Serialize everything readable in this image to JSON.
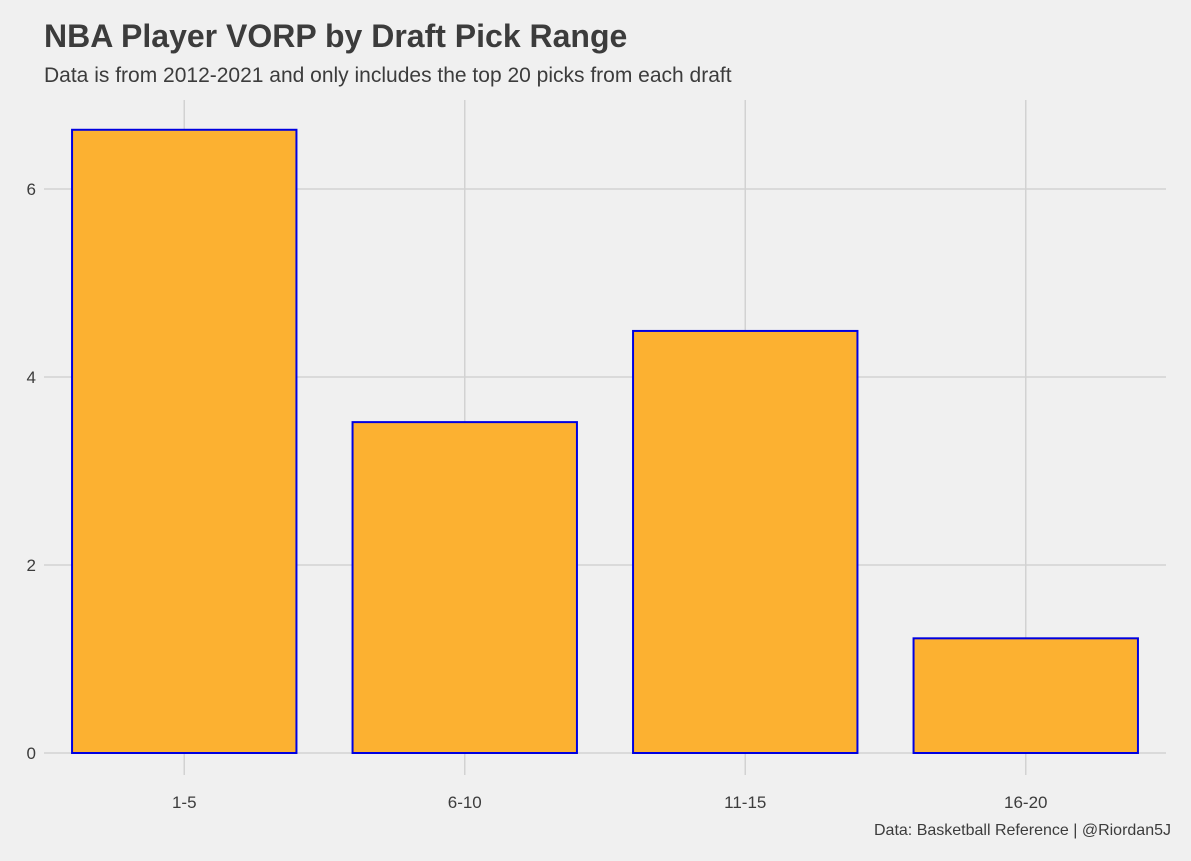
{
  "title": "NBA Player VORP by Draft Pick Range",
  "subtitle": "Data is from 2012-2021 and only includes the top 20 picks from each draft",
  "caption": "Data: Basketball Reference | @Riordan5J",
  "colors": {
    "background": "#f0f0f0",
    "bar_fill": "#fcb131",
    "bar_stroke": "#0000e0",
    "grid": "#d2d2d2",
    "text": "#3c3c3c"
  },
  "chart_data": {
    "type": "bar",
    "categories": [
      "1-5",
      "6-10",
      "11-15",
      "16-20"
    ],
    "values": [
      6.63,
      3.52,
      4.49,
      1.22
    ],
    "xlabel": "",
    "ylabel": "",
    "ylim": [
      0,
      6.7
    ],
    "yticks": [
      0,
      2,
      4,
      6
    ],
    "grid": true,
    "legend": "none"
  }
}
